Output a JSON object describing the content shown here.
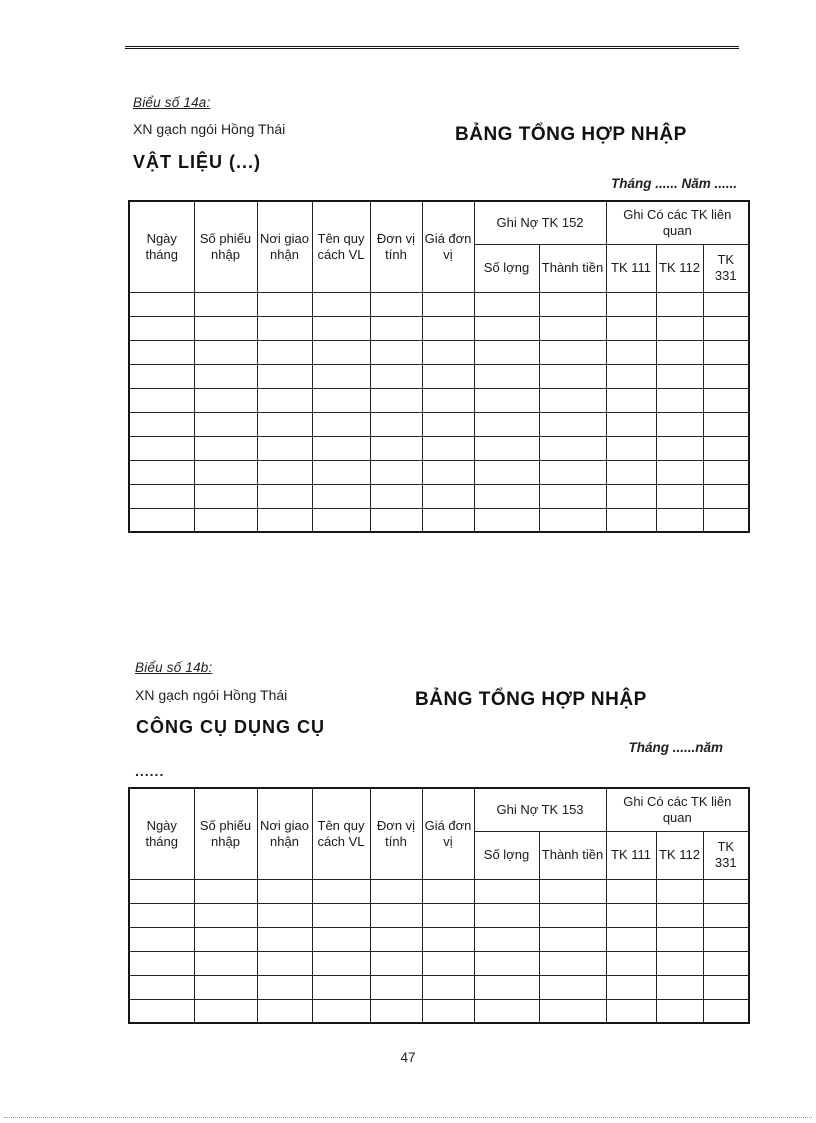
{
  "page": {
    "number": "47"
  },
  "section_a": {
    "label": "Biểu số 14a:",
    "company": "XN gạch ngói Hồng Thái",
    "title": "BẢNG TỔNG HỢP NHẬP",
    "subtitle": "VẬT LIỆU (...)",
    "period": "Tháng ...... Năm ......",
    "table": {
      "columns": [
        "Ngày tháng",
        "Số phiếu nhập",
        "Nơi giao nhận",
        "Tên quy cách VL",
        "Đơn vị tính",
        "Giá đơn vị"
      ],
      "debit_header": "Ghi Nợ TK 152",
      "credit_header": "Ghi Có các TK liên quan",
      "debit_subcolumns": [
        "Số lợng",
        "Thành tiền"
      ],
      "credit_subcolumns": [
        "TK 111",
        "TK 112",
        "TK 331"
      ],
      "empty_rows": 10
    }
  },
  "section_b": {
    "label": "Biểu số 14b:",
    "company": "XN gạch ngói Hồng Thái",
    "title": "BẢNG TỔNG HỢP NHẬP",
    "subtitle": "CÔNG CỤ DỤNG CỤ",
    "subtitle_cont": "......",
    "period": "Tháng ......năm",
    "table": {
      "columns": [
        "Ngày tháng",
        "Số phiếu nhập",
        "Nơi giao nhận",
        "Tên quy cách VL",
        "Đơn vị tính",
        "Giá đơn vị"
      ],
      "debit_header": "Ghi Nợ TK 153",
      "credit_header": "Ghi Có các TK liên quan",
      "debit_subcolumns": [
        "Số lợng",
        "Thành tiền"
      ],
      "credit_subcolumns": [
        "TK 111",
        "TK 112",
        "TK 331"
      ],
      "empty_rows": 6
    }
  }
}
